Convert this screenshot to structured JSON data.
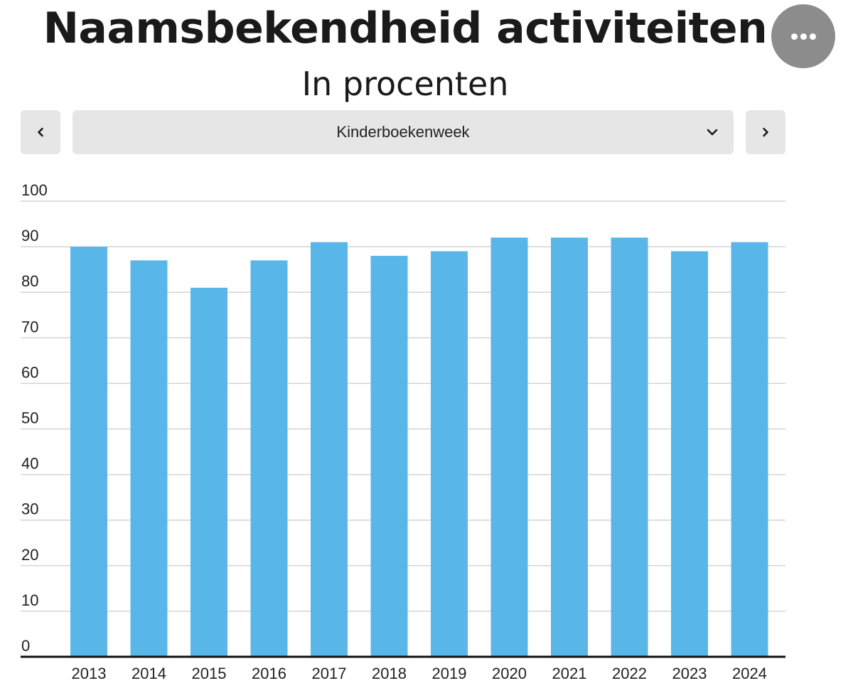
{
  "header": {
    "title": "Naamsbekendheid activiteiten",
    "subtitle": "In procenten"
  },
  "controls": {
    "more_icon": "more-horizontal-icon",
    "prev_icon": "chevron-left-icon",
    "next_icon": "chevron-right-icon",
    "dropdown_icon": "chevron-down-icon",
    "selected_activity": "Kinderboekenweek"
  },
  "colors": {
    "bar": "#58b7e8",
    "grid": "#d4d4d4",
    "axis": "#111111",
    "control_bg": "#e6e6e6",
    "more_button_bg": "#8c8c8c"
  },
  "chart_data": {
    "type": "bar",
    "title": "Naamsbekendheid activiteiten",
    "subtitle": "In procenten",
    "xlabel": "",
    "ylabel": "",
    "categories": [
      "2013",
      "2014",
      "2015",
      "2016",
      "2017",
      "2018",
      "2019",
      "2020",
      "2021",
      "2022",
      "2023",
      "2024"
    ],
    "series": [
      {
        "values": [
          90,
          87,
          81,
          87,
          91,
          88,
          89,
          92,
          92,
          92,
          89,
          91
        ]
      }
    ],
    "ylim": [
      0,
      100
    ],
    "yticks": [
      "0",
      "10",
      "20",
      "30",
      "40",
      "50",
      "60",
      "70",
      "80",
      "90",
      "100"
    ],
    "grid": true,
    "legend": "none"
  }
}
